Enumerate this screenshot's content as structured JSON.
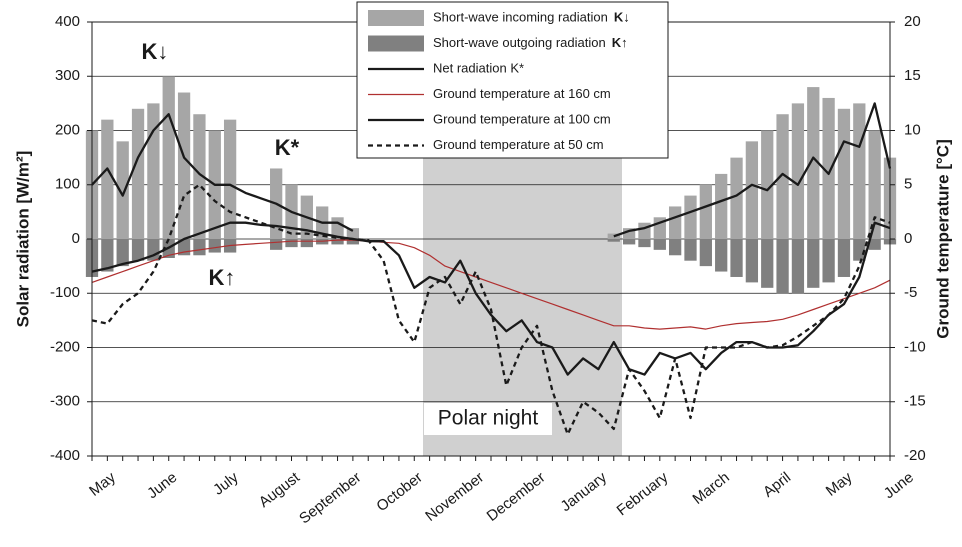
{
  "chart_data": {
    "type": "combo",
    "y_label": "Solar radiation [W/m²]",
    "y2_label": "Ground temperature [°C]",
    "ylim": [
      -400,
      400
    ],
    "yticks": [
      -400,
      -300,
      -200,
      -100,
      0,
      100,
      200,
      300,
      400
    ],
    "y2lim": [
      -20,
      20
    ],
    "y2ticks": [
      -20,
      -15,
      -10,
      -5,
      0,
      5,
      10,
      15,
      20
    ],
    "grid": true,
    "annotations": [
      "K↓",
      "K*",
      "K↑",
      "Polar night"
    ],
    "categories": [
      "May",
      null,
      null,
      null,
      "June",
      null,
      null,
      null,
      "July",
      null,
      null,
      null,
      "August",
      null,
      null,
      null,
      "September",
      null,
      null,
      null,
      "October",
      null,
      null,
      null,
      "November",
      null,
      null,
      null,
      "December",
      null,
      null,
      null,
      "January",
      null,
      null,
      null,
      "February",
      null,
      null,
      null,
      "March",
      null,
      null,
      null,
      "April",
      null,
      null,
      null,
      "May",
      null,
      null,
      null,
      "June"
    ],
    "series": [
      {
        "name": "Short-wave incoming radiation",
        "legend_symbol": "K↓",
        "type": "bar",
        "color": "#a6a6a6",
        "values": [
          200,
          220,
          180,
          240,
          250,
          300,
          270,
          230,
          200,
          220,
          null,
          null,
          130,
          100,
          80,
          60,
          40,
          20,
          null,
          null,
          null,
          null,
          null,
          null,
          null,
          null,
          null,
          null,
          null,
          null,
          null,
          null,
          null,
          null,
          10,
          20,
          30,
          40,
          60,
          80,
          100,
          120,
          150,
          180,
          200,
          230,
          250,
          280,
          260,
          240,
          250,
          200,
          150
        ]
      },
      {
        "name": "Short-wave outgoing radiation",
        "legend_symbol": "K↑",
        "type": "bar",
        "color": "#808080",
        "values": [
          -70,
          -60,
          -50,
          -40,
          -40,
          -35,
          -30,
          -30,
          -25,
          -25,
          null,
          null,
          -20,
          -15,
          -15,
          -10,
          -10,
          -10,
          null,
          null,
          null,
          null,
          null,
          null,
          null,
          null,
          null,
          null,
          null,
          null,
          null,
          null,
          null,
          null,
          -5,
          -10,
          -15,
          -20,
          -30,
          -40,
          -50,
          -60,
          -70,
          -80,
          -90,
          -100,
          -100,
          -90,
          -80,
          -70,
          -40,
          -20,
          -10
        ]
      },
      {
        "name": "Net radiation K*",
        "type": "line",
        "color": "#1a1a1a",
        "values": [
          100,
          130,
          80,
          150,
          200,
          230,
          150,
          120,
          100,
          100,
          85,
          75,
          65,
          50,
          40,
          30,
          30,
          15,
          null,
          null,
          null,
          null,
          null,
          null,
          null,
          null,
          null,
          null,
          null,
          null,
          null,
          null,
          null,
          null,
          5,
          15,
          20,
          30,
          40,
          50,
          60,
          70,
          80,
          100,
          90,
          120,
          100,
          150,
          120,
          180,
          170,
          250,
          130
        ]
      },
      {
        "name": "Ground temperature at 160 cm",
        "type": "line",
        "axis": "y2",
        "color": "#b03030",
        "values": [
          -4,
          -3.5,
          -3,
          -2.5,
          -2,
          -1.5,
          -1.2,
          -1,
          -0.8,
          -0.6,
          -0.5,
          -0.4,
          -0.3,
          -0.2,
          -0.2,
          -0.2,
          -0.1,
          -0.1,
          -0.2,
          -0.3,
          -0.4,
          -0.8,
          -1.5,
          -2.5,
          -3,
          -3.5,
          -4,
          -4.5,
          -5,
          -5.5,
          -6,
          -6.5,
          -7,
          -7.5,
          -8,
          -8,
          -8.2,
          -8.3,
          -8.2,
          -8.1,
          -8.3,
          -8,
          -7.8,
          -7.7,
          -7.6,
          -7.4,
          -7,
          -6.5,
          -6,
          -5.5,
          -5,
          -4.5,
          -3.8
        ]
      },
      {
        "name": "Ground temperature at 100 cm",
        "type": "line",
        "axis": "y2",
        "color": "#1a1a1a",
        "values": [
          -3,
          -2.7,
          -2.3,
          -2,
          -1.5,
          -0.8,
          0,
          0.5,
          1,
          1.5,
          1.5,
          1.3,
          1.2,
          1,
          0.8,
          0.5,
          0.2,
          0,
          -0.2,
          -0.2,
          -1.5,
          -4.5,
          -3.5,
          -4,
          -2,
          -5,
          -7,
          -8.5,
          -7.5,
          -9.5,
          -10,
          -12.5,
          -11,
          -12,
          -9.5,
          -12,
          -12.5,
          -10.5,
          -11,
          -10.5,
          -12,
          -10.5,
          -9.5,
          -9.5,
          -10,
          -10,
          -9.8,
          -8.5,
          -7,
          -6,
          -3.5,
          1.5,
          1
        ]
      },
      {
        "name": "Ground temperature at 50 cm",
        "type": "line",
        "axis": "y2",
        "color": "#1a1a1a",
        "dashed": true,
        "values": [
          -7.5,
          -7.8,
          -6,
          -5,
          -3,
          0,
          4,
          5,
          3.5,
          2.5,
          2,
          1.5,
          1,
          0.5,
          0.5,
          0.3,
          0.1,
          0,
          -0.1,
          -2,
          -7.5,
          -9.5,
          -4.5,
          -3.5,
          -6,
          -3,
          -6.5,
          -13.5,
          -10,
          -8,
          -14,
          -18,
          -15,
          -16,
          -17.5,
          -12,
          -14,
          -16.5,
          -11,
          -16.5,
          -10,
          -10,
          -10,
          -9.5,
          -10,
          -9.8,
          -9,
          -8,
          -7,
          -5.5,
          -2.5,
          2,
          1.5
        ]
      }
    ]
  }
}
